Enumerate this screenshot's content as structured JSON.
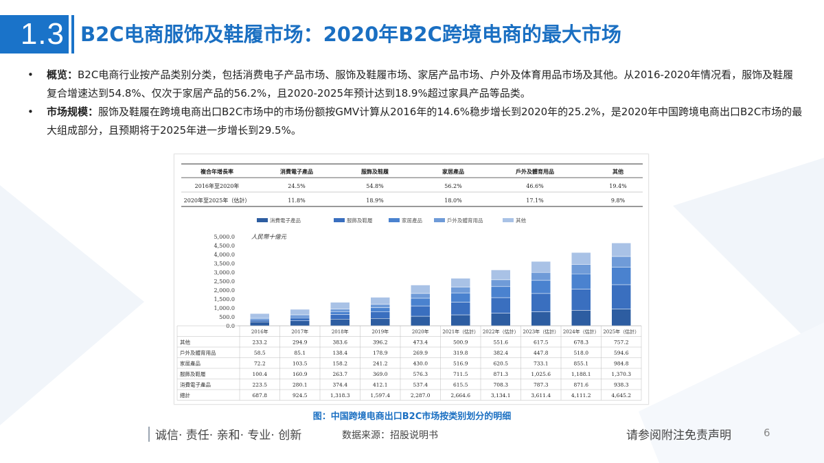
{
  "header": {
    "section_number": "1.3",
    "title": "B2C电商服饰及鞋履市场：2020年B2C跨境电商的最大市场"
  },
  "bullets": [
    {
      "marker": "•",
      "label": "概览：",
      "text": "B2C电商行业按产品类别分类，包括消费电子产品市场、服饰及鞋履市场、家居产品市场、户外及体育用品市场及其他。从2016-2020年情况看，服饰及鞋履复合增速达到54.8%、仅次于家居产品的56.2%，且2020-2025年预计达到18.9%超过家具产品等品类。"
    },
    {
      "marker": "•",
      "label": "市场规模：",
      "text": "服饰及鞋履在跨境电商出口B2C市场中的市场份额按GMV计算从2016年的14.6%稳步增长到2020年的25.2%，是2020年中国跨境电商出口B2C市场的最大组成部分，且预期将于2025年进一步增长到29.5%。"
    }
  ],
  "cagr_table": {
    "header": [
      "複合年增長率",
      "消費電子產品",
      "服飾及鞋履",
      "家居產品",
      "戶外及體育用品",
      "其他"
    ],
    "rows": [
      [
        "2016年至2020年",
        "24.5%",
        "54.8%",
        "56.2%",
        "46.6%",
        "19.4%"
      ],
      [
        "2020年至2025年（估計）",
        "11.8%",
        "18.9%",
        "18.0%",
        "17.1%",
        "9.8%"
      ]
    ]
  },
  "chart_data": {
    "type": "bar",
    "stacked": true,
    "unit_label": "人民幣十億元",
    "categories": [
      "2016年",
      "2017年",
      "2018年",
      "2019年",
      "2020年",
      "2021年（估計）",
      "2022年（估計）",
      "2023年（估計）",
      "2024年（估計）",
      "2025年（估計）"
    ],
    "series": [
      {
        "name": "消費電子產品",
        "color": "#2d5da1",
        "values": [
          223.5,
          280.1,
          374.4,
          412.1,
          537.4,
          615.5,
          708.3,
          787.3,
          871.6,
          938.3
        ]
      },
      {
        "name": "服飾及鞋履",
        "color": "#3a6fbf",
        "values": [
          100.4,
          160.9,
          263.7,
          369.0,
          576.3,
          711.5,
          871.3,
          1025.6,
          1188.1,
          1370.3
        ]
      },
      {
        "name": "家居產品",
        "color": "#4a82cf",
        "values": [
          72.2,
          103.5,
          158.2,
          241.2,
          430.0,
          516.9,
          620.5,
          733.1,
          855.1,
          984.8
        ]
      },
      {
        "name": "戶外及體育用品",
        "color": "#6f9bd8",
        "values": [
          58.5,
          85.1,
          138.4,
          178.9,
          269.9,
          319.8,
          382.4,
          447.8,
          518.0,
          594.6
        ]
      },
      {
        "name": "其他",
        "color": "#a9c2e6",
        "values": [
          233.2,
          294.9,
          383.6,
          396.2,
          473.4,
          500.9,
          551.6,
          617.5,
          678.3,
          757.2
        ]
      }
    ],
    "totals": [
      687.8,
      924.5,
      1318.3,
      1597.4,
      2287.0,
      2664.6,
      3134.1,
      3611.4,
      4111.2,
      4645.2
    ],
    "ylim": [
      0,
      5000
    ],
    "yticks": [
      "5,000.0",
      "4,500.0",
      "4,000.0",
      "3,500.0",
      "3,000.0",
      "2,500.0",
      "2,000.0",
      "1,500.0",
      "1,000.0",
      "500.0",
      "0.0"
    ],
    "legend_position": "top",
    "grid": false,
    "table_row_labels": [
      "其他",
      "戶外及體育用品",
      "家居產品",
      "服飾及鞋履",
      "消費電子產品",
      "總計"
    ],
    "table_values": [
      [
        "233.2",
        "294.9",
        "383.6",
        "396.2",
        "473.4",
        "500.9",
        "551.6",
        "617.5",
        "678.3",
        "757.2"
      ],
      [
        "58.5",
        "85.1",
        "138.4",
        "178.9",
        "269.9",
        "319.8",
        "382.4",
        "447.8",
        "518.0",
        "594.6"
      ],
      [
        "72.2",
        "103.5",
        "158.2",
        "241.2",
        "430.0",
        "516.9",
        "620.5",
        "733.1",
        "855.1",
        "984.8"
      ],
      [
        "100.4",
        "160.9",
        "263.7",
        "369.0",
        "576.3",
        "711.5",
        "871.3",
        "1,025.6",
        "1,188.1",
        "1,370.3"
      ],
      [
        "223.5",
        "280.1",
        "374.4",
        "412.1",
        "537.4",
        "615.5",
        "708.3",
        "787.3",
        "871.6",
        "938.3"
      ],
      [
        "687.8",
        "924.5",
        "1,318.3",
        "1,597.4",
        "2,287.0",
        "2,664.6",
        "3,134.1",
        "3,611.4",
        "4,111.2",
        "4,645.2"
      ]
    ]
  },
  "caption": "图：中国跨境电商出口B2C市场按类别划分的明细",
  "footer": {
    "slogan": "诚信· 责任· 亲和· 专业· 创新",
    "source": "数据来源：招股说明书",
    "disclaimer": "请参阅附注免责声明",
    "page_number": "6"
  },
  "colors": {
    "accent": "#1a73c9",
    "title": "#1a6fc2",
    "background_shape": "#eef3f9"
  }
}
